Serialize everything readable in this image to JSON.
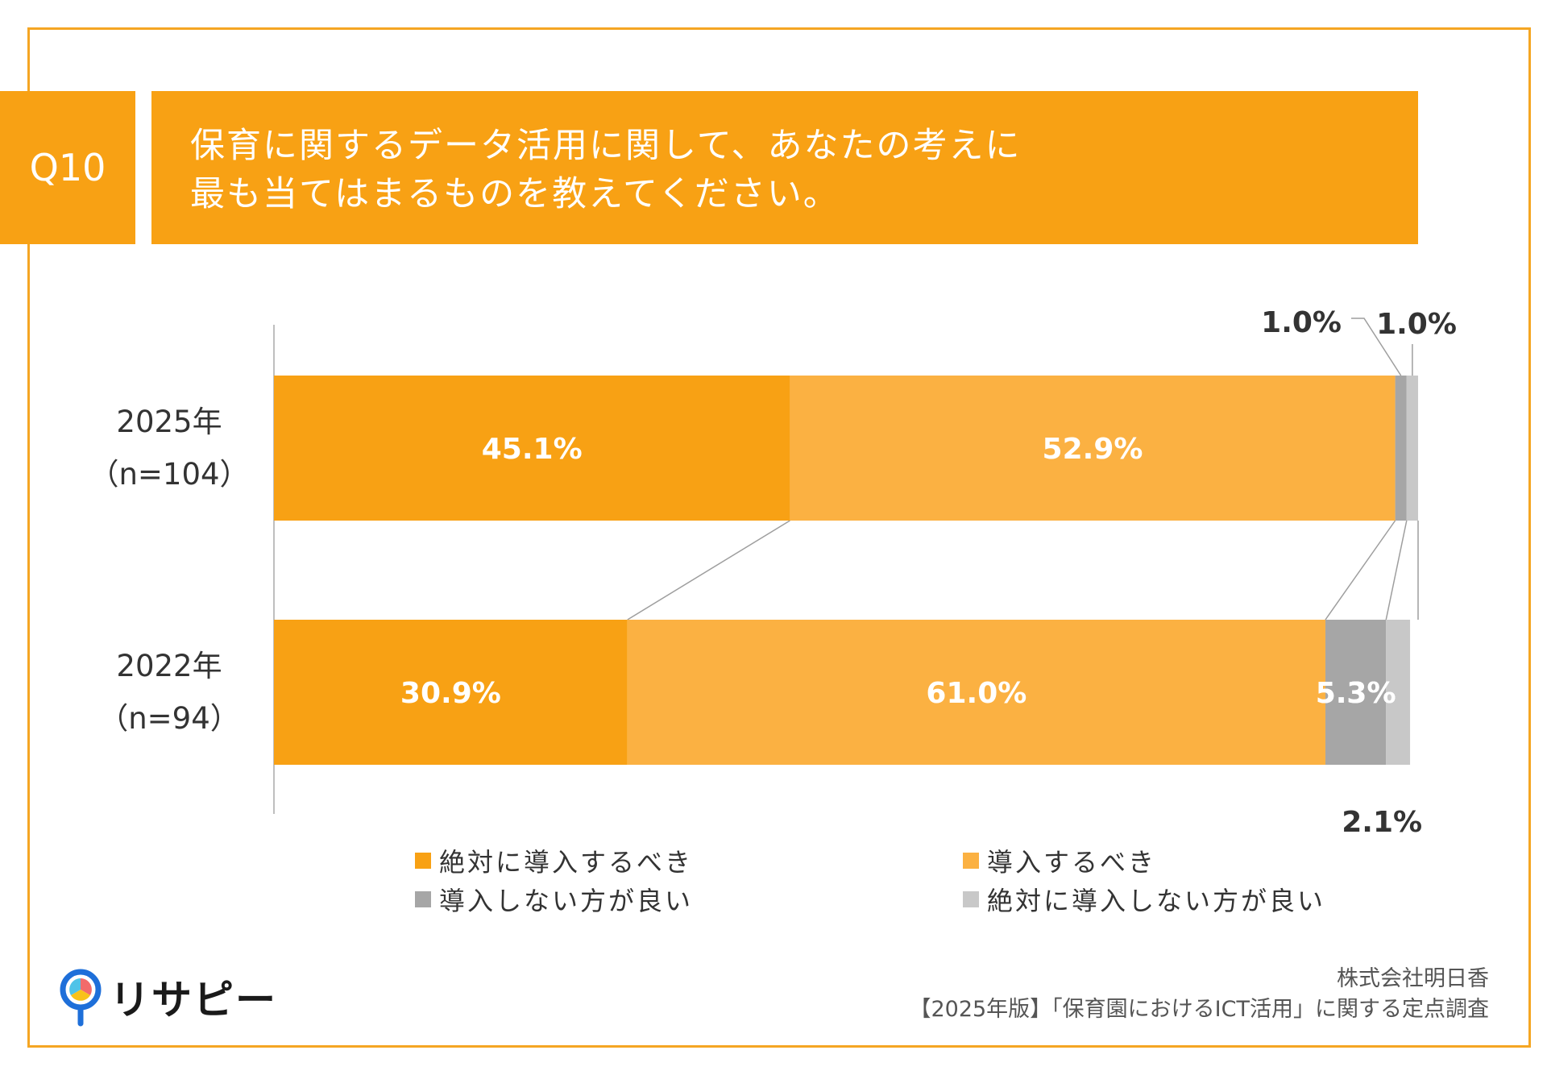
{
  "question_label": "Q10",
  "title_lines": [
    "保育に関するデータ活用に関して、あなたの考えに",
    "最も当てはまるものを教えてください。"
  ],
  "colors": {
    "accent": "#F8A114",
    "series": [
      "#F8A114",
      "#FBB142",
      "#A6A6A6",
      "#C8C8C8"
    ]
  },
  "chart_data": {
    "type": "bar",
    "orientation": "horizontal",
    "stacked": true,
    "normalized": true,
    "categories": [
      {
        "line1": "2025年",
        "line2": "（n=104）"
      },
      {
        "line1": "2022年",
        "line2": "（n=94）"
      }
    ],
    "series": [
      {
        "name": "絶対に導入するべき",
        "values": [
          45.1,
          30.9
        ]
      },
      {
        "name": "導入するべき",
        "values": [
          52.9,
          61.0
        ]
      },
      {
        "name": "導入しない方が良い",
        "values": [
          1.0,
          5.3
        ]
      },
      {
        "name": "絶対に導入しない方が良い",
        "values": [
          1.0,
          2.1
        ]
      }
    ],
    "value_labels": [
      [
        "45.1%",
        "52.9%",
        "1.0%",
        "1.0%"
      ],
      [
        "30.9%",
        "61.0%",
        "5.3%",
        "2.1%"
      ]
    ],
    "xlim": [
      0,
      100
    ],
    "grid": false,
    "legend_placement": "bottom"
  },
  "logo_text": "リサピー",
  "footer": {
    "company": "株式会社明日香",
    "survey": "【2025年版】「保育園におけるICT活用」に関する定点調査"
  }
}
